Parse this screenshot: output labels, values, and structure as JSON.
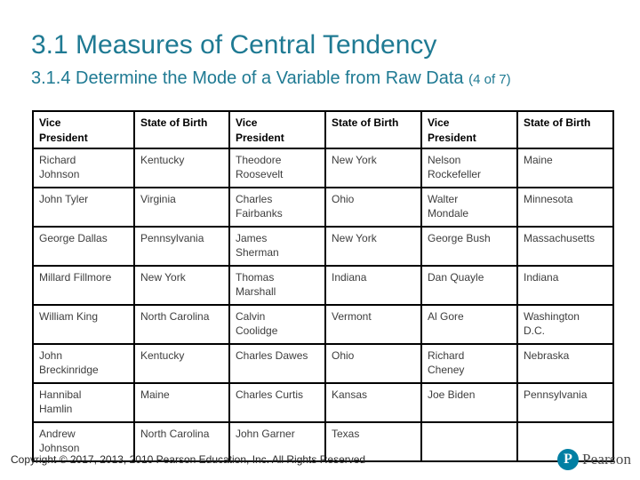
{
  "slide": {
    "title": "3.1 Measures of Central Tendency",
    "subtitle": "3.1.4 Determine the Mode of a Variable from Raw Data ",
    "subtitle_suffix": "(4 of 7)"
  },
  "table": {
    "headers": [
      "Vice\nPresident",
      "State of Birth",
      "Vice\nPresident",
      "State of Birth",
      "Vice\nPresident",
      "State of Birth"
    ],
    "rows": [
      [
        "Richard\nJohnson",
        "Kentucky",
        "Theodore\nRoosevelt",
        "New York",
        "Nelson\nRockefeller",
        "Maine"
      ],
      [
        "John Tyler",
        "Virginia",
        "Charles\nFairbanks",
        "Ohio",
        "Walter\nMondale",
        "Minnesota"
      ],
      [
        "George Dallas",
        "Pennsylvania",
        "James\nSherman",
        "New York",
        "George Bush",
        "Massachusetts"
      ],
      [
        "Millard Fillmore",
        "New York",
        "Thomas\nMarshall",
        "Indiana",
        "Dan Quayle",
        "Indiana"
      ],
      [
        "William King",
        "North Carolina",
        "Calvin\nCoolidge",
        "Vermont",
        "Al Gore",
        "Washington\nD.C."
      ],
      [
        "John\nBreckinridge",
        "Kentucky",
        "Charles Dawes",
        "Ohio",
        "Richard\nCheney",
        "Nebraska"
      ],
      [
        "Hannibal\nHamlin",
        "Maine",
        "Charles Curtis",
        "Kansas",
        "Joe Biden",
        "Pennsylvania"
      ],
      [
        "Andrew\nJohnson",
        "North Carolina",
        "John Garner",
        "Texas",
        "",
        ""
      ]
    ]
  },
  "footer": {
    "copyright": "Copyright © 2017, 2013, 2010 Pearson Education, Inc. All Rights Reserved",
    "logo_letter": "P",
    "logo_wordmark": "Pearson"
  },
  "colors": {
    "title_teal": "#1F7A93",
    "logo_teal": "#007FA3",
    "body_text": "#3D3D3D",
    "border": "#000000"
  }
}
